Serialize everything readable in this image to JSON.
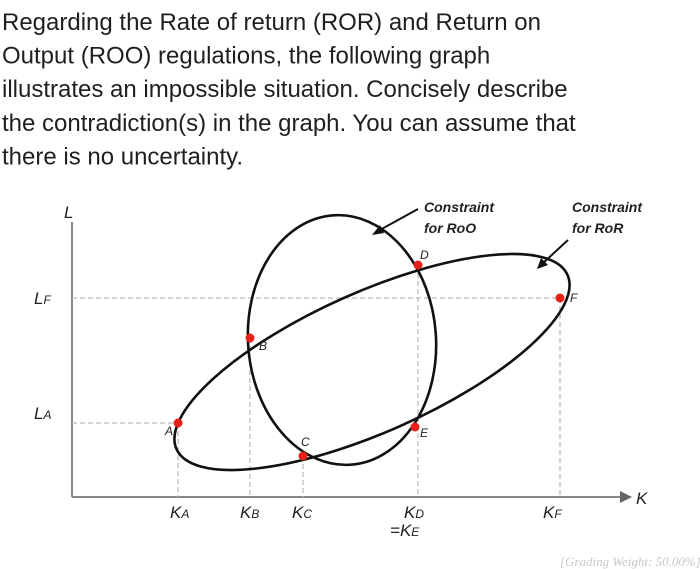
{
  "question": {
    "lines": [
      "Regarding the Rate of return (ROR) and Return on",
      "Output (ROO) regulations, the following graph",
      "illustrates an impossible situation. Concisely describe",
      "the contradiction(s) in the graph. You can assume that",
      "there is no uncertainty."
    ]
  },
  "diagram": {
    "y_axis_label": "L",
    "x_axis_label": "K",
    "y_labels": [
      {
        "base": "L",
        "sub": "F"
      },
      {
        "base": "L",
        "sub": "A"
      }
    ],
    "x_labels": [
      {
        "base": "K",
        "sub": "A"
      },
      {
        "base": "K",
        "sub": "B"
      },
      {
        "base": "K",
        "sub": "C"
      },
      {
        "base": "K",
        "sub": "D"
      },
      {
        "prefix": "=",
        "base": "K",
        "sub": "E"
      },
      {
        "base": "K",
        "sub": "F"
      }
    ],
    "points": [
      "A",
      "B",
      "C",
      "D",
      "E",
      "F"
    ],
    "constraint_roo": [
      "Constraint",
      "for RoO"
    ],
    "constraint_ror": [
      "Constraint",
      "for RoR"
    ]
  },
  "footer": "[Grading Weight: 50.00%]"
}
